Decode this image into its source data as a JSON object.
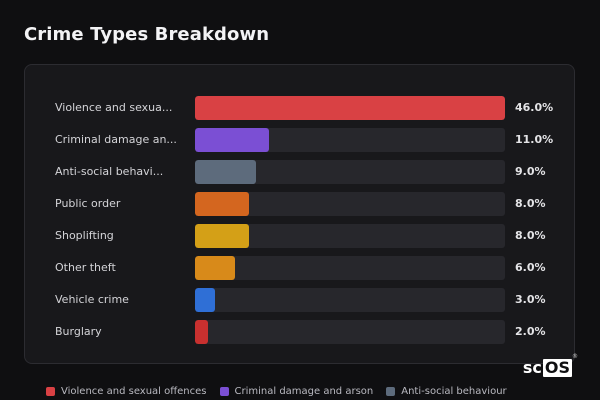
{
  "title": "Crime Types Breakdown",
  "chart_data": {
    "type": "bar",
    "orientation": "horizontal",
    "value_format": "percent",
    "xlim": [
      0,
      46
    ],
    "categories": [
      "Violence and sexual offences",
      "Criminal damage and arson",
      "Anti-social behaviour",
      "Public order",
      "Shoplifting",
      "Other theft",
      "Vehicle crime",
      "Burglary"
    ],
    "display_labels": [
      "Violence and sexua...",
      "Criminal damage an...",
      "Anti-social behavi...",
      "Public order",
      "Shoplifting",
      "Other theft",
      "Vehicle crime",
      "Burglary"
    ],
    "values": [
      46.0,
      11.0,
      9.0,
      8.0,
      8.0,
      6.0,
      3.0,
      2.0
    ],
    "value_labels": [
      "46.0%",
      "11.0%",
      "9.0%",
      "8.0%",
      "8.0%",
      "6.0%",
      "3.0%",
      "2.0%"
    ],
    "colors": [
      "#d94144",
      "#7b4fd4",
      "#5d6b7c",
      "#d4661f",
      "#d4a017",
      "#d88a1a",
      "#2f6fd6",
      "#c8302f"
    ],
    "legend_position": "bottom",
    "legend": [
      {
        "label": "Violence and sexual offences",
        "color": "#d94144"
      },
      {
        "label": "Criminal damage and arson",
        "color": "#7b4fd4"
      },
      {
        "label": "Anti-social behaviour",
        "color": "#5d6b7c"
      }
    ]
  },
  "watermark": {
    "prefix": "sc",
    "boxed": "OS",
    "mark": "®"
  }
}
